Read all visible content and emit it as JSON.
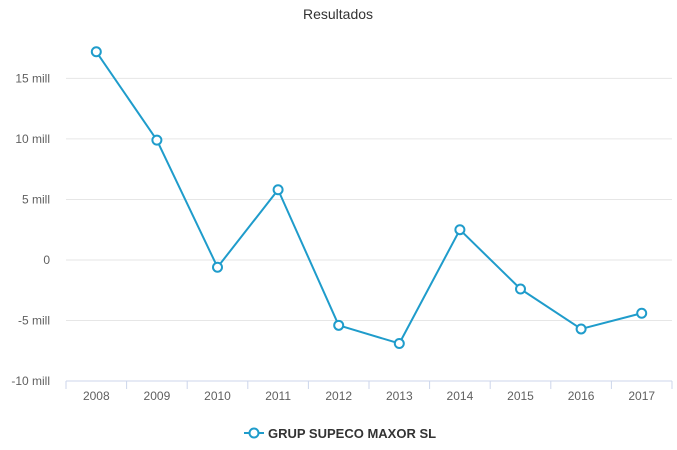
{
  "chart_data": {
    "type": "line",
    "title": "Resultados",
    "categories": [
      "2008",
      "2009",
      "2010",
      "2011",
      "2012",
      "2013",
      "2014",
      "2015",
      "2016",
      "2017"
    ],
    "series": [
      {
        "name": "GRUP SUPECO MAXOR SL",
        "values": [
          17.2,
          9.9,
          -0.6,
          5.8,
          -5.4,
          -6.9,
          2.5,
          -2.4,
          -5.7,
          -4.4
        ],
        "color": "#1f9ccb"
      }
    ],
    "yticks": [
      -10,
      -5,
      0,
      5,
      10,
      15
    ],
    "ytick_labels": [
      "-10 mill",
      "-5 mill",
      "0",
      "5 mill",
      "10 mill",
      "15 mill"
    ],
    "ylim": [
      -10,
      19
    ],
    "grid": true,
    "legend_position": "bottom-center"
  }
}
